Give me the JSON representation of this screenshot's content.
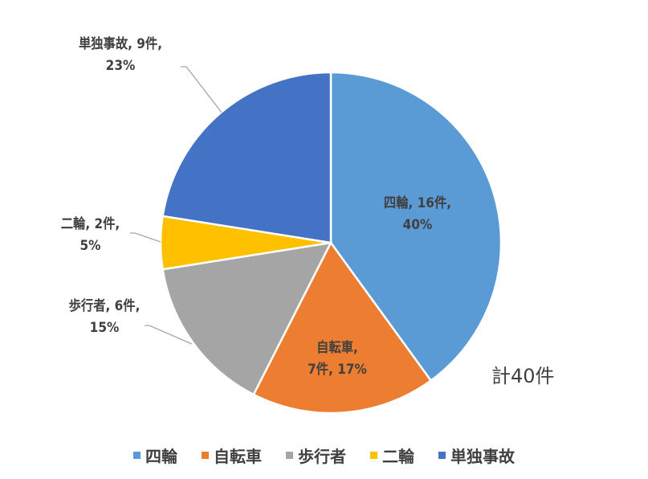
{
  "chart_data": {
    "type": "pie",
    "title": "",
    "total_label": "計40件",
    "categories": [
      "四輪",
      "自転車",
      "歩行者",
      "二輪",
      "単独事故"
    ],
    "values": [
      16,
      7,
      6,
      2,
      9
    ],
    "percentages": [
      40,
      17,
      15,
      5,
      23
    ],
    "colors": [
      "#5B9BD5",
      "#ED7D31",
      "#A5A5A5",
      "#FFC000",
      "#4472C4"
    ],
    "data_labels": [
      {
        "line1": "四輪, 16件,",
        "line2": "40%"
      },
      {
        "line1": "自転車,",
        "line2": "7件, 17%"
      },
      {
        "line1": "歩行者, 6件,",
        "line2": "15%"
      },
      {
        "line1": "二輪, 2件,",
        "line2": "5%"
      },
      {
        "line1": "単独事故, 9件,",
        "line2": "23%"
      }
    ],
    "legend_position": "bottom"
  },
  "legend": [
    {
      "label": "四輪",
      "color": "#5B9BD5"
    },
    {
      "label": "自転車",
      "color": "#ED7D31"
    },
    {
      "label": "歩行者",
      "color": "#A5A5A5"
    },
    {
      "label": "二輪",
      "color": "#FFC000"
    },
    {
      "label": "単独事故",
      "color": "#4472C4"
    }
  ]
}
